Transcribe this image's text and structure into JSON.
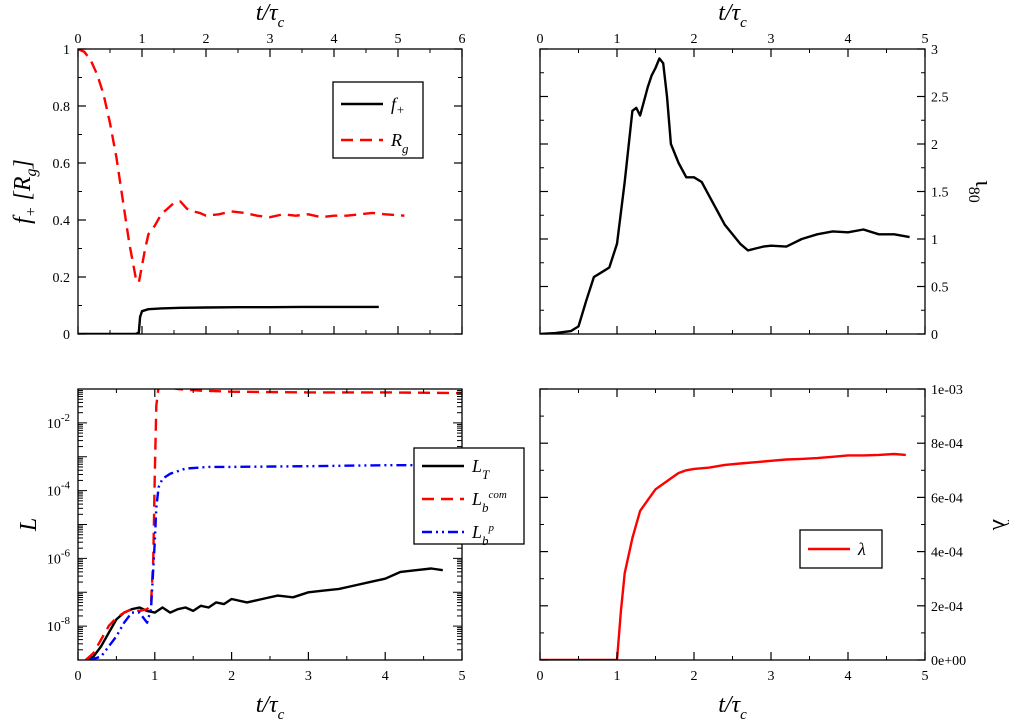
{
  "chart_data": [
    {
      "id": "p1",
      "type": "line",
      "xlabel": "t/τc",
      "ylabel": "f+ [Rg]",
      "xlim": [
        0,
        6
      ],
      "ylim": [
        0,
        1
      ],
      "x_ticks": [
        "0",
        "1",
        "2",
        "3",
        "4",
        "5",
        "6"
      ],
      "y_ticks": [
        "0",
        "0.2",
        "0.4",
        "0.6",
        "0.8",
        "1"
      ],
      "axis_position": "x ticks top",
      "legend_position": "top-right",
      "legend": [
        {
          "label": "f+",
          "color": "#000000",
          "dash": "solid"
        },
        {
          "label": "Rg",
          "color": "#ff0000",
          "dash": "dashed"
        }
      ],
      "series": [
        {
          "name": "f+",
          "color": "#000000",
          "dash": "solid",
          "x": [
            0,
            0.5,
            0.9,
            0.95,
            0.97,
            1.0,
            1.1,
            1.3,
            1.6,
            2.0,
            2.5,
            3.0,
            3.5,
            4.0,
            4.7
          ],
          "y": [
            0,
            0,
            0,
            0.005,
            0.06,
            0.08,
            0.087,
            0.09,
            0.092,
            0.093,
            0.094,
            0.094,
            0.095,
            0.095,
            0.095
          ]
        },
        {
          "name": "Rg",
          "color": "#ff0000",
          "dash": "dashed",
          "x": [
            0,
            0.1,
            0.2,
            0.3,
            0.4,
            0.5,
            0.6,
            0.7,
            0.8,
            0.9,
            0.95,
            1.0,
            1.05,
            1.1,
            1.2,
            1.3,
            1.4,
            1.5,
            1.6,
            1.7,
            1.8,
            1.9,
            2.0,
            2.2,
            2.4,
            2.6,
            2.8,
            3.0,
            3.2,
            3.4,
            3.6,
            3.8,
            4.0,
            4.2,
            4.4,
            4.6,
            4.8,
            5.1
          ],
          "y": [
            1.0,
            0.99,
            0.96,
            0.91,
            0.84,
            0.74,
            0.62,
            0.47,
            0.32,
            0.2,
            0.18,
            0.24,
            0.3,
            0.35,
            0.38,
            0.42,
            0.44,
            0.46,
            0.465,
            0.44,
            0.43,
            0.425,
            0.415,
            0.42,
            0.43,
            0.425,
            0.415,
            0.41,
            0.42,
            0.415,
            0.42,
            0.41,
            0.415,
            0.415,
            0.42,
            0.425,
            0.42,
            0.415
          ]
        }
      ]
    },
    {
      "id": "p2",
      "type": "line",
      "xlabel": "t/τc",
      "ylabel": "ι80",
      "xlim": [
        0,
        5
      ],
      "ylim": [
        0,
        3
      ],
      "x_ticks": [
        "0",
        "1",
        "2",
        "3",
        "4",
        "5"
      ],
      "y_ticks": [
        "0",
        "0.5",
        "1",
        "1.5",
        "2",
        "2.5",
        "3"
      ],
      "axis_position": "x ticks top, y ticks right",
      "series": [
        {
          "name": "",
          "color": "#000000",
          "dash": "solid",
          "x": [
            0,
            0.2,
            0.4,
            0.5,
            0.6,
            0.7,
            0.8,
            0.9,
            1.0,
            1.1,
            1.2,
            1.25,
            1.3,
            1.35,
            1.4,
            1.45,
            1.5,
            1.55,
            1.6,
            1.65,
            1.7,
            1.8,
            1.9,
            2.0,
            2.1,
            2.2,
            2.3,
            2.4,
            2.5,
            2.6,
            2.7,
            2.8,
            2.9,
            3.0,
            3.2,
            3.4,
            3.6,
            3.8,
            4.0,
            4.2,
            4.4,
            4.6,
            4.8
          ],
          "y": [
            0,
            0.01,
            0.03,
            0.08,
            0.35,
            0.6,
            0.65,
            0.7,
            0.95,
            1.6,
            2.35,
            2.38,
            2.3,
            2.45,
            2.6,
            2.72,
            2.8,
            2.9,
            2.85,
            2.5,
            2.0,
            1.8,
            1.65,
            1.65,
            1.6,
            1.45,
            1.3,
            1.15,
            1.05,
            0.95,
            0.88,
            0.9,
            0.92,
            0.93,
            0.92,
            1.0,
            1.05,
            1.08,
            1.07,
            1.1,
            1.05,
            1.05,
            1.02
          ]
        }
      ]
    },
    {
      "id": "p3",
      "type": "line",
      "xlabel": "t/τc",
      "ylabel": "L",
      "log_y": true,
      "xlim": [
        0,
        5
      ],
      "ylim_log10": [
        -9,
        -1
      ],
      "x_ticks": [
        "0",
        "1",
        "2",
        "3",
        "4",
        "5"
      ],
      "y_ticks": [
        {
          "base": "10",
          "exp": "-8",
          "log10": -8
        },
        {
          "base": "10",
          "exp": "-6",
          "log10": -6
        },
        {
          "base": "10",
          "exp": "-4",
          "log10": -4
        },
        {
          "base": "10",
          "exp": "-2",
          "log10": -2
        }
      ],
      "legend_position": "right",
      "legend": [
        {
          "label": "L",
          "sub": "T",
          "sup": "",
          "color": "#000000",
          "dash": "solid"
        },
        {
          "label": "L",
          "sub": "b",
          "sup": "com",
          "color": "#ff0000",
          "dash": "dashed"
        },
        {
          "label": "L",
          "sub": "b",
          "sup": "p",
          "color": "#0000ff",
          "dash": "dashdotdot"
        }
      ],
      "series": [
        {
          "name": "LT",
          "color": "#000000",
          "dash": "solid",
          "x": [
            0.1,
            0.2,
            0.3,
            0.4,
            0.5,
            0.6,
            0.7,
            0.8,
            0.9,
            1.0,
            1.1,
            1.2,
            1.3,
            1.4,
            1.5,
            1.6,
            1.7,
            1.8,
            1.9,
            2.0,
            2.2,
            2.4,
            2.6,
            2.8,
            3.0,
            3.2,
            3.4,
            3.6,
            3.8,
            4.0,
            4.2,
            4.4,
            4.6,
            4.75
          ],
          "y_log10": [
            -9,
            -8.9,
            -8.6,
            -8.2,
            -7.8,
            -7.6,
            -7.5,
            -7.45,
            -7.55,
            -7.6,
            -7.45,
            -7.6,
            -7.5,
            -7.45,
            -7.55,
            -7.4,
            -7.45,
            -7.3,
            -7.35,
            -7.2,
            -7.3,
            -7.2,
            -7.1,
            -7.15,
            -7.0,
            -6.95,
            -6.9,
            -6.8,
            -6.7,
            -6.6,
            -6.4,
            -6.35,
            -6.3,
            -6.35
          ]
        },
        {
          "name": "Lb com",
          "color": "#ff0000",
          "dash": "dashed",
          "x": [
            0.1,
            0.2,
            0.3,
            0.4,
            0.5,
            0.6,
            0.7,
            0.8,
            0.9,
            0.95,
            0.98,
            1.0,
            1.02,
            1.05,
            1.1,
            1.3,
            1.6,
            2.0,
            3.0,
            4.0,
            5.0
          ],
          "y_log10": [
            -9,
            -8.8,
            -8.4,
            -8.0,
            -7.75,
            -7.6,
            -7.5,
            -7.55,
            -7.5,
            -7.35,
            -6.0,
            -3.5,
            -1.5,
            -0.93,
            -0.92,
            -1.0,
            -1.05,
            -1.08,
            -1.1,
            -1.1,
            -1.12
          ]
        },
        {
          "name": "Lb p",
          "color": "#0000ff",
          "dash": "dashdotdot",
          "x": [
            0.15,
            0.3,
            0.4,
            0.5,
            0.6,
            0.7,
            0.8,
            0.9,
            0.95,
            1.0,
            1.02,
            1.05,
            1.1,
            1.2,
            1.4,
            1.7,
            2.0,
            3.0,
            4.0,
            5.0
          ],
          "y_log10": [
            -9,
            -8.9,
            -8.6,
            -8.3,
            -7.9,
            -7.6,
            -7.6,
            -7.9,
            -7.5,
            -5.5,
            -4.5,
            -3.9,
            -3.65,
            -3.5,
            -3.35,
            -3.3,
            -3.3,
            -3.28,
            -3.25,
            -3.25
          ]
        }
      ]
    },
    {
      "id": "p4",
      "type": "line",
      "xlabel": "t/τc",
      "ylabel": "λ",
      "xlim": [
        0,
        5
      ],
      "ylim": [
        0,
        0.001
      ],
      "x_ticks": [
        "0",
        "1",
        "2",
        "3",
        "4",
        "5"
      ],
      "y_ticks": [
        "0e+00",
        "2e-04",
        "4e-04",
        "6e-04",
        "8e-04",
        "1e-03"
      ],
      "axis_position": "y ticks right",
      "legend_position": "lower-right",
      "legend": [
        {
          "label": "λ",
          "color": "#ff0000",
          "dash": "solid"
        }
      ],
      "series": [
        {
          "name": "λ",
          "color": "#ff0000",
          "dash": "solid",
          "x": [
            0,
            0.5,
            1.0,
            1.05,
            1.1,
            1.2,
            1.3,
            1.4,
            1.5,
            1.6,
            1.7,
            1.8,
            1.9,
            2.0,
            2.2,
            2.4,
            2.6,
            2.8,
            3.0,
            3.2,
            3.4,
            3.6,
            3.8,
            4.0,
            4.2,
            4.4,
            4.6,
            4.75
          ],
          "y": [
            0,
            0,
            0,
            0.00018,
            0.00032,
            0.00045,
            0.00055,
            0.00059,
            0.00063,
            0.00065,
            0.00067,
            0.00069,
            0.0007,
            0.000705,
            0.00071,
            0.00072,
            0.000725,
            0.00073,
            0.000735,
            0.00074,
            0.000742,
            0.000745,
            0.00075,
            0.000755,
            0.000755,
            0.000757,
            0.00076,
            0.000757
          ]
        }
      ]
    }
  ]
}
